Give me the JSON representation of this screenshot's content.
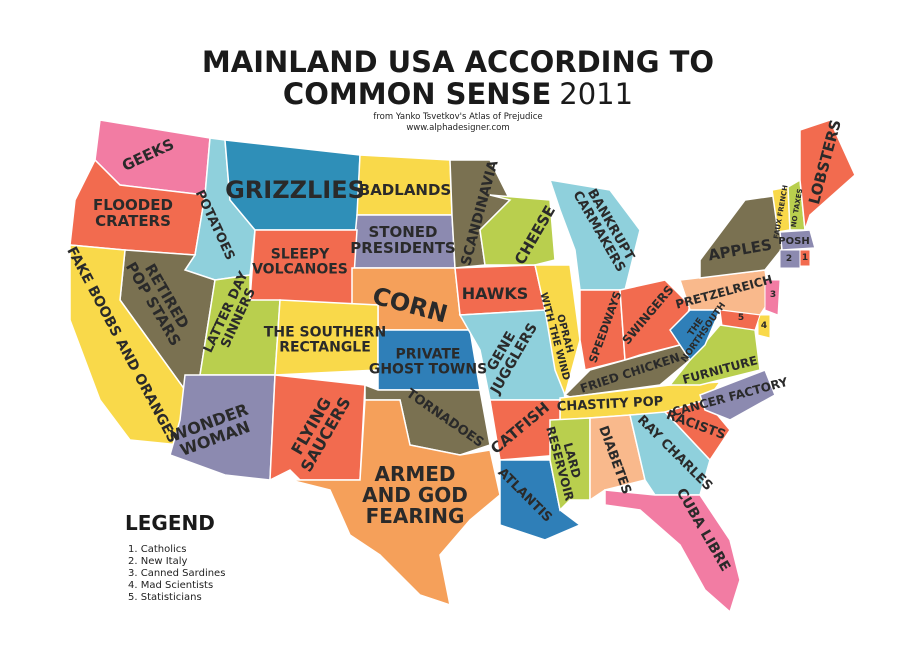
{
  "title": {
    "line1": "MAINLAND USA ACCORDING TO",
    "line2": "COMMON SENSE",
    "year": "2011"
  },
  "credits": [
    "from Yanko Tsvetkov's Atlas of Prejudice",
    "www.alphadesigner.com"
  ],
  "regions": [
    [
      "GEEKS"
    ],
    [
      "FLOODED",
      "CRATERS"
    ],
    [
      "POTATOES"
    ],
    [
      "GRIZZLIES"
    ],
    [
      "BADLANDS"
    ],
    [
      "STONED",
      "PRESIDENTS"
    ],
    [
      "SCANDINAVIA"
    ],
    [
      "SLEEPY",
      "VOLCANOES"
    ],
    [
      "CORN"
    ],
    [
      "HAWKS"
    ],
    [
      "CHEESE"
    ],
    [
      "BANKRUPT",
      "CARMAKERS"
    ],
    [
      "RETIRED",
      "POP STARS"
    ],
    [
      "FAKE BOOBS AND ORANGES"
    ],
    [
      "LATTER DAY",
      "SINNERS"
    ],
    [
      "THE SOUTHERN",
      "RECTANGLE"
    ],
    [
      "PRIVATE",
      "GHOST TOWNS"
    ],
    [
      "GENE",
      "JUGGLERS"
    ],
    [
      "OPRAH",
      "WITH THE WIND"
    ],
    [
      "SPEEDWAYS"
    ],
    [
      "SWINGERS"
    ],
    [
      "FRIED CHICKEN"
    ],
    [
      "CHASTITY POP"
    ],
    [
      "WONDER",
      "WOMAN"
    ],
    [
      "FLYING",
      "SAUCERS"
    ],
    [
      "TORNADOES"
    ],
    [
      "ARMED",
      "AND GOD",
      "FEARING"
    ],
    [
      "CATFISH"
    ],
    [
      "ATLANTIS"
    ],
    [
      "LARD",
      "RESERVOIR"
    ],
    [
      "DIABETES"
    ],
    [
      "RAY CHARLES"
    ],
    [
      "CUBA LIBRE"
    ],
    [
      "RACISTS"
    ],
    [
      "CANCER FACTORY"
    ],
    [
      "FURNITURE"
    ],
    [
      "THE",
      "NORTHSOUTH"
    ],
    [
      "PRETZELREICH"
    ],
    [
      "APPLES"
    ],
    [
      "FAUX FRENCH"
    ],
    [
      "NO TAXES"
    ],
    [
      "LOBSTERS"
    ],
    [
      "POSH"
    ]
  ],
  "markers": [
    "1",
    "2",
    "3",
    "4",
    "5"
  ],
  "legend": {
    "title": "LEGEND",
    "items": [
      "1. Catholics",
      "2. New Italy",
      "3. Canned Sardines",
      "4. Mad Scientists",
      "5. Statisticians"
    ]
  }
}
